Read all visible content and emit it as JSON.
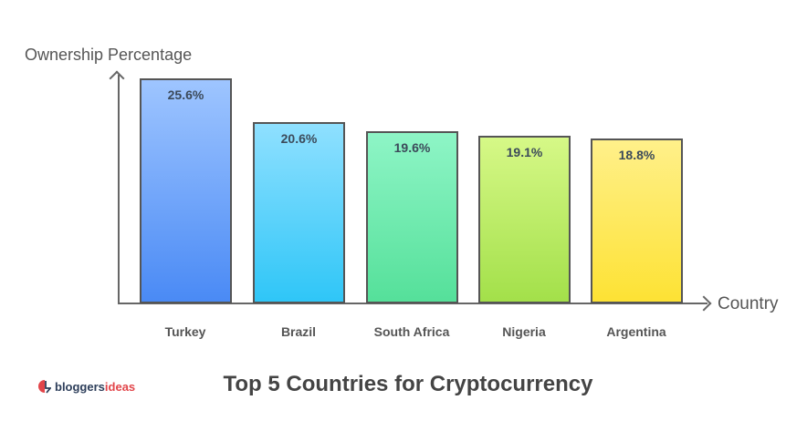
{
  "chart_data": {
    "type": "bar",
    "title": "Top 5 Countries for Cryptocurrency",
    "xlabel": "Country",
    "ylabel": "Ownership Percentage",
    "categories": [
      "Turkey",
      "Brazil",
      "South Africa",
      "Nigeria",
      "Argentina"
    ],
    "values": [
      25.6,
      20.6,
      19.6,
      19.1,
      18.8
    ],
    "value_labels": [
      "25.6%",
      "20.6%",
      "19.6%",
      "19.1%",
      "18.8%"
    ],
    "unit": "%",
    "grid": false,
    "legend": null,
    "bar_colors": [
      [
        "#9ec5ff",
        "#4a8af5"
      ],
      [
        "#8fe0ff",
        "#2fc6f7"
      ],
      [
        "#8ef5c6",
        "#55e09a"
      ],
      [
        "#d6f887",
        "#a3e04a"
      ],
      [
        "#fff08a",
        "#fde234"
      ]
    ]
  },
  "logo": {
    "part1": "bloggers",
    "part2": "ideas"
  }
}
